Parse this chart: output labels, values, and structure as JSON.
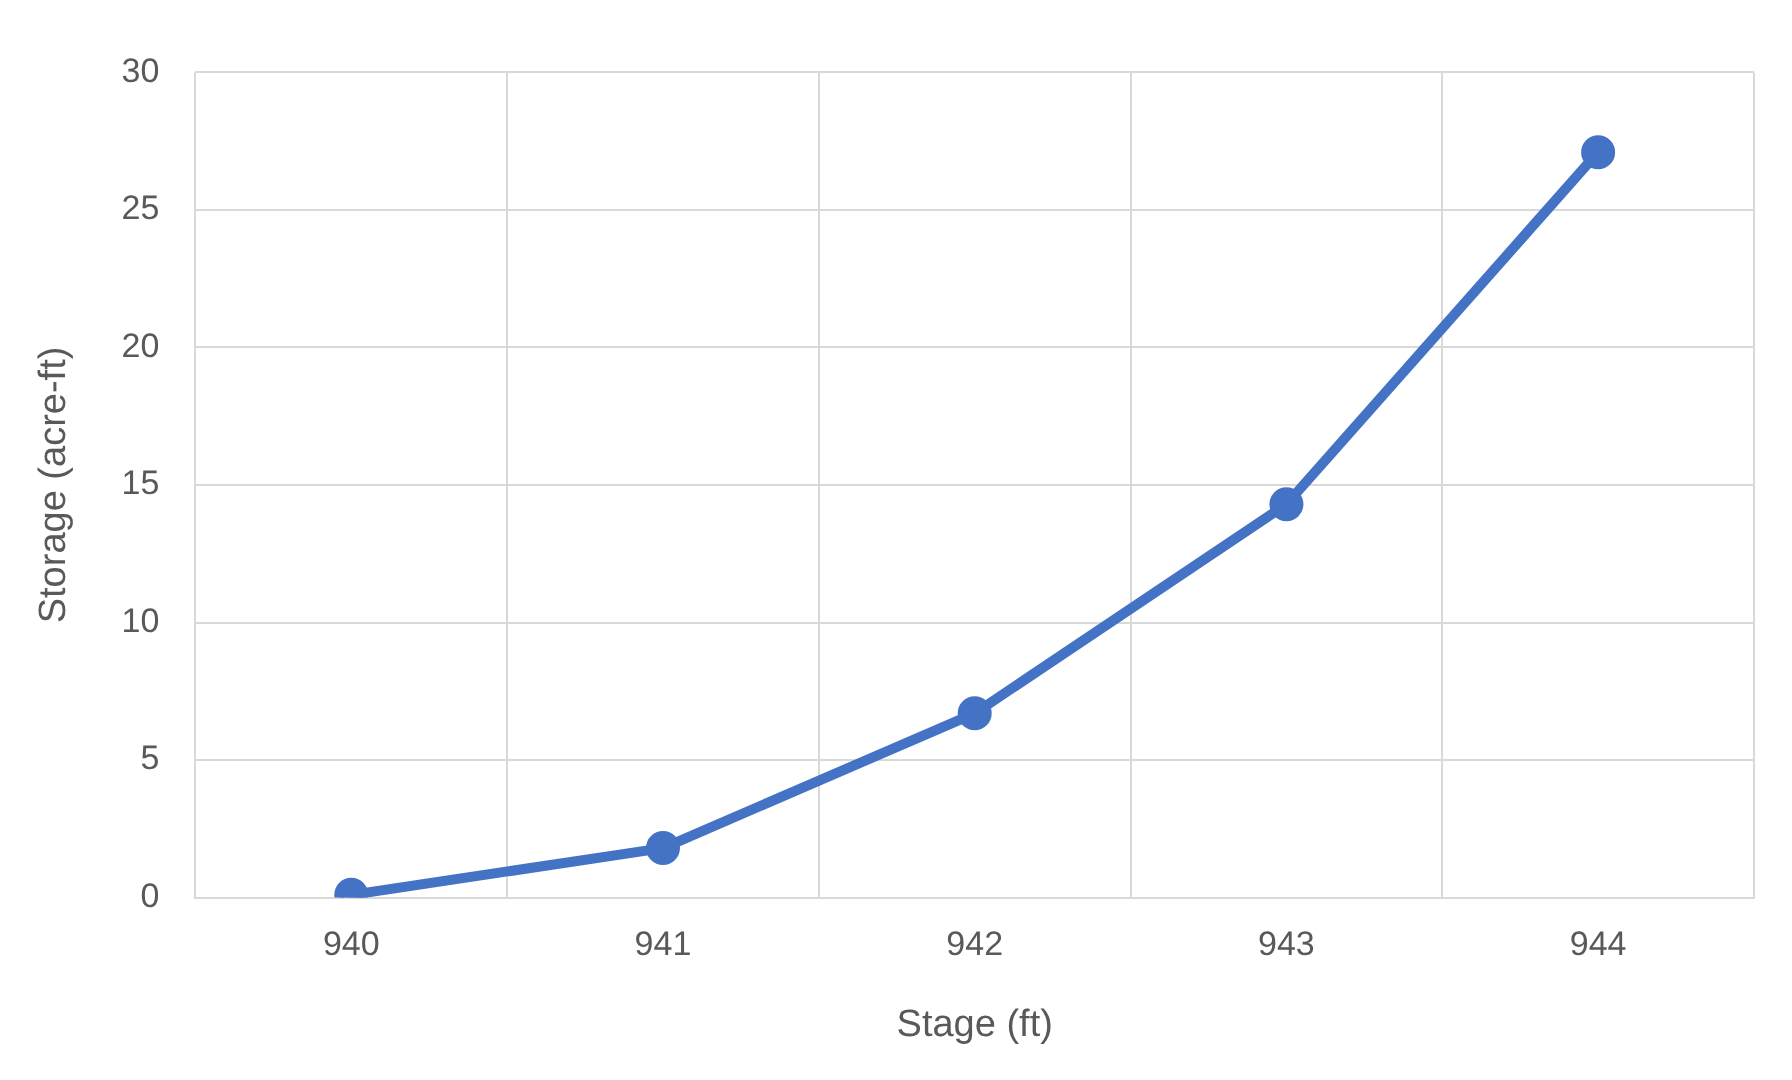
{
  "chart_data": {
    "type": "line",
    "xlabel": "Stage (ft)",
    "ylabel": "Storage (acre-ft)",
    "categories": [
      "940",
      "941",
      "942",
      "943",
      "944"
    ],
    "series": [
      {
        "color": "#4472c4",
        "values": [
          0.1,
          1.8,
          6.7,
          14.3,
          27.1
        ]
      }
    ],
    "ylim": [
      0,
      30
    ],
    "yticks": [
      0,
      5,
      10,
      15,
      20,
      25,
      30
    ],
    "grid": true,
    "legend": false,
    "marker": "circle",
    "line_style": "solid"
  }
}
